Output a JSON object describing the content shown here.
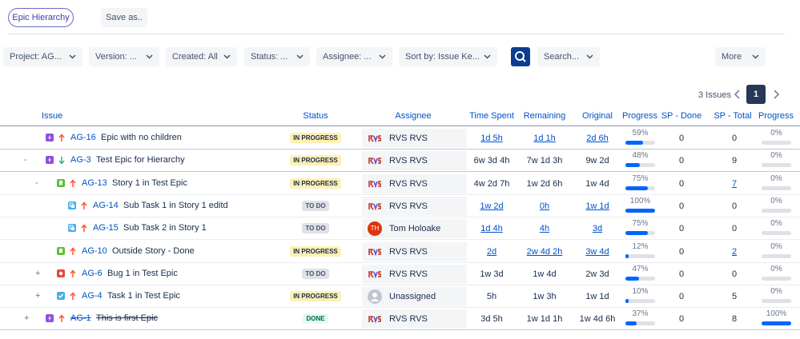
{
  "header": {
    "view_button": "Epic Hierarchy",
    "save_button": "Save as.."
  },
  "filters": [
    "Project: AG...",
    "Version: ...",
    "Created: All",
    "Status: ...",
    "Assignee: ...",
    "Sort by: Issue Ke...",
    "Search...",
    "More"
  ],
  "pagination": {
    "count": "3 Issues",
    "page": "1"
  },
  "table": {
    "columns": [
      "Issue",
      "Status",
      "Assignee",
      "Time Spent",
      "Remaining",
      "Original",
      "Progress",
      "SP - Done",
      "SP - Total",
      "Progress"
    ],
    "rows": [
      {
        "level": 0,
        "type": "epic",
        "priority": "up",
        "key": "AG-16",
        "summary": "Epic with no children",
        "status": "IN PROGRESS",
        "avatar": "rvs",
        "assignee": "RVS RVS",
        "time_spent": "1d 5h",
        "remaining": "1d 1h",
        "original": "2d 6h",
        "times_linked": true,
        "progress": {
          "value": 59,
          "label": "59%"
        },
        "sp_done": 0,
        "sp_total": 0,
        "sp_progress": {
          "value": 0,
          "label": "0%"
        }
      },
      {
        "level": 0,
        "toggle": "-",
        "type": "epic",
        "priority": "down",
        "key": "AG-3",
        "summary": "Test Epic for Hierarchy",
        "status": "IN PROGRESS",
        "avatar": "rvs",
        "assignee": "RVS RVS",
        "time_spent": "6w 3d 4h",
        "remaining": "7w 1d 3h",
        "original": "9w 2d",
        "progress": {
          "value": 48,
          "label": "48%"
        },
        "sp_done": 0,
        "sp_total": 9,
        "sp_progress": {
          "value": 0,
          "label": "0%"
        }
      },
      {
        "level": 1,
        "toggle": "-",
        "type": "story",
        "priority": "up",
        "key": "AG-13",
        "summary": "Story 1 in Test Epic",
        "status": "IN PROGRESS",
        "avatar": "rvs",
        "assignee": "RVS RVS",
        "time_spent": "4w 2d 7h",
        "remaining": "1w 2d 6h",
        "original": "1w 4d",
        "sp_total_linked": true,
        "progress": {
          "value": 75,
          "label": "75%"
        },
        "sp_done": 0,
        "sp_total": 7,
        "sp_progress": {
          "value": 0,
          "label": "0%"
        }
      },
      {
        "level": 2,
        "type": "subtask",
        "priority": "up",
        "key": "AG-14",
        "summary": "Sub Task 1 in Story 1 editd",
        "status": "TO DO",
        "avatar": "rvs",
        "assignee": "RVS RVS",
        "time_spent": "1w 2d",
        "remaining": "0h",
        "original": "1w 1d",
        "times_linked": true,
        "progress": {
          "value": 100,
          "label": "100%"
        },
        "sp_done": 0,
        "sp_total": 0,
        "sp_progress": {
          "value": 0,
          "label": "0%"
        }
      },
      {
        "level": 2,
        "type": "subtask",
        "priority": "up",
        "key": "AG-15",
        "summary": "Sub Task 2 in Story 1",
        "status": "TO DO",
        "avatar": "initials",
        "initials": "TH",
        "assignee": "Tom Holoake",
        "time_spent": "1d 4h",
        "remaining": "4h",
        "original": "3d",
        "times_linked": true,
        "progress": {
          "value": 75,
          "label": "75%"
        },
        "sp_done": 0,
        "sp_total": 0,
        "sp_progress": {
          "value": 0,
          "label": "0%"
        }
      },
      {
        "level": 1,
        "type": "story",
        "priority": "up",
        "key": "AG-10",
        "summary": "Outside Story - Done",
        "status": "IN PROGRESS",
        "avatar": "rvs",
        "assignee": "RVS RVS",
        "time_spent": "2d",
        "remaining": "2w 4d 2h",
        "original": "3w 4d",
        "times_linked": true,
        "sp_total_linked": true,
        "progress": {
          "value": 12,
          "label": "12%"
        },
        "sp_done": 0,
        "sp_total": 2,
        "sp_progress": {
          "value": 0,
          "label": "0%"
        }
      },
      {
        "level": 1,
        "toggle": "+",
        "type": "bug",
        "priority": "up",
        "key": "AG-6",
        "summary": "Bug 1 in Test Epic",
        "status": "TO DO",
        "avatar": "rvs",
        "assignee": "RVS RVS",
        "time_spent": "1w 3d",
        "remaining": "1w 4d",
        "original": "2w 3d",
        "progress": {
          "value": 47,
          "label": "47%"
        },
        "sp_done": 0,
        "sp_total": 0,
        "sp_progress": {
          "value": 0,
          "label": "0%"
        }
      },
      {
        "level": 1,
        "toggle": "+",
        "type": "task",
        "priority": "up",
        "key": "AG-4",
        "summary": "Task 1 in Test Epic",
        "status": "IN PROGRESS",
        "avatar": "none",
        "assignee": "Unassigned",
        "time_spent": "5h",
        "remaining": "1w 3h",
        "original": "1w 1d",
        "progress": {
          "value": 10,
          "label": "10%"
        },
        "sp_done": 0,
        "sp_total": 5,
        "sp_progress": {
          "value": 0,
          "label": "0%"
        }
      },
      {
        "level": 0,
        "toggle": "+",
        "type": "epic",
        "priority": "up",
        "done": true,
        "key": "AG-1",
        "summary": "This is first Epic",
        "status": "DONE",
        "avatar": "rvs",
        "assignee": "RVS RVS",
        "time_spent": "3d 5h",
        "remaining": "1w 1d 1h",
        "original": "1w 4d 6h",
        "progress": {
          "value": 37,
          "label": "37%"
        },
        "sp_done": 0,
        "sp_total": 8,
        "sp_progress": {
          "value": 100,
          "label": "100%"
        }
      }
    ]
  }
}
